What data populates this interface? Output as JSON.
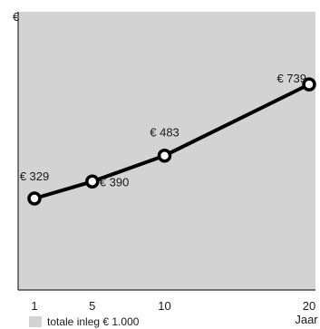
{
  "chart_data": {
    "type": "line",
    "title": "",
    "xlabel": "Jaar",
    "ylabel": "€",
    "x": [
      1,
      5,
      10,
      20
    ],
    "xticks": [
      "1",
      "5",
      "10",
      "20"
    ],
    "xlim": [
      0,
      20
    ],
    "ylim": [
      0,
      1000
    ],
    "series": [
      {
        "values": [
          329,
          390,
          483,
          739
        ],
        "labels": [
          "€ 329",
          "€ 390",
          "€ 483",
          "€ 739"
        ]
      }
    ],
    "legend": {
      "label": "totale inleg € 1.000",
      "placement": "bottom-left"
    },
    "grid": false,
    "colors": {
      "plot_background": "#d3d3d3",
      "line": "#000000",
      "marker_fill": "#ffffff",
      "legend_swatch": "#d3d3d3"
    }
  }
}
